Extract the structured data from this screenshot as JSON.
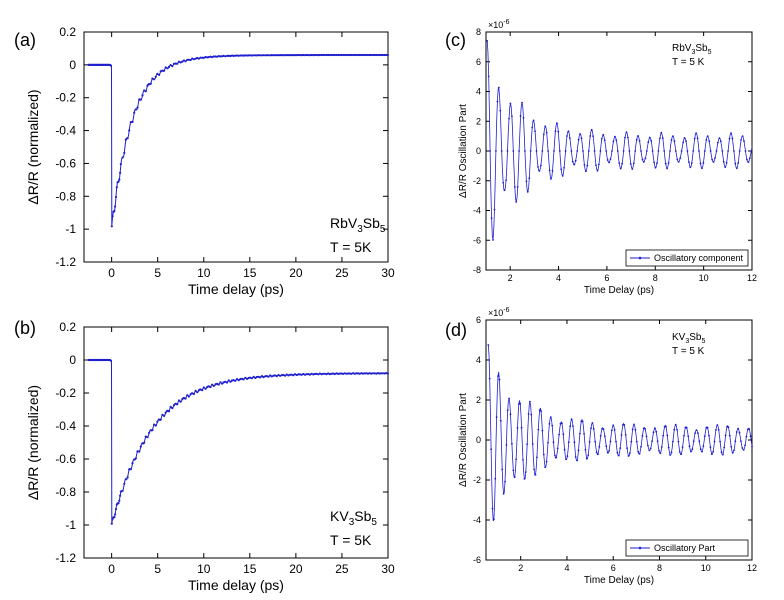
{
  "chart_data": [
    {
      "panel": "(a)",
      "type": "line",
      "title": "",
      "xlabel": "Time delay (ps)",
      "ylabel": "ΔR/R (normalized)",
      "xlim": [
        -3,
        30
      ],
      "ylim": [
        -1.2,
        0.2
      ],
      "xticks": [
        0,
        5,
        10,
        15,
        20,
        25,
        30
      ],
      "yticks": [
        0.2,
        0,
        -0.2,
        -0.4,
        -0.6,
        -0.8,
        -1,
        -1.2
      ],
      "annotation": {
        "compound": "RbV",
        "sub1": "3",
        "mid": "Sb",
        "sub2": "5",
        "temp": "T = 5K"
      },
      "series": [
        {
          "name": "RbV3Sb5",
          "color": "#1f1fcf",
          "model": {
            "t0": 0,
            "rise": 0.15,
            "depth": -1.0,
            "tau": 2.2,
            "plateau": 0.06,
            "relax": 4.0,
            "osc_amp": 0.03,
            "osc_period": 0.48,
            "osc_tau": 4.0
          }
        }
      ]
    },
    {
      "panel": "(b)",
      "type": "line",
      "title": "",
      "xlabel": "Time delay (ps)",
      "ylabel": "ΔR/R (normalized)",
      "xlim": [
        -3,
        30
      ],
      "ylim": [
        -1.2,
        0.2
      ],
      "xticks": [
        0,
        5,
        10,
        15,
        20,
        25,
        30
      ],
      "yticks": [
        0.2,
        0,
        -0.2,
        -0.4,
        -0.6,
        -0.8,
        -1,
        -1.2
      ],
      "annotation": {
        "compound": "KV",
        "sub1": "3",
        "mid": "Sb",
        "sub2": "5",
        "temp": "T = 5K"
      },
      "series": [
        {
          "name": "KV3Sb5",
          "color": "#1f1fcf",
          "model": {
            "t0": 0,
            "rise": 0.15,
            "depth": -1.0,
            "tau": 4.5,
            "plateau": -0.08,
            "relax": 6.0,
            "osc_amp": 0.015,
            "osc_period": 0.45,
            "osc_tau": 12.0
          }
        }
      ]
    },
    {
      "panel": "(c)",
      "type": "line",
      "title": "",
      "xlabel": "Time Delay (ps)",
      "ylabel": "ΔR/R Oscillation Part",
      "exponent": "×10",
      "exponent_power": "-6",
      "xlim": [
        1,
        12
      ],
      "ylim": [
        -8,
        8
      ],
      "xticks": [
        2,
        4,
        6,
        8,
        10,
        12
      ],
      "yticks": [
        8,
        6,
        4,
        2,
        0,
        -2,
        -4,
        -6,
        -8
      ],
      "legend": "Oscillatory component",
      "legend_position": "bottom-right",
      "annotation": {
        "compound": "RbV",
        "sub1": "3",
        "mid": "Sb",
        "sub2": "5",
        "temp": "T = 5 K"
      },
      "series": [
        {
          "name": "Oscillatory component",
          "color": "#1f1fcf",
          "model": {
            "x_start": 1.05,
            "amp": 6.2,
            "decay": 1.3,
            "floor": 1.2,
            "period": 0.48,
            "beat_period": 1.45,
            "beat_depth": 0.45
          }
        }
      ]
    },
    {
      "panel": "(d)",
      "type": "line",
      "title": "",
      "xlabel": "Time Delay (ps)",
      "ylabel": "ΔR/R Oscillation Part",
      "exponent": "×10",
      "exponent_power": "-6",
      "xlim": [
        0.5,
        12
      ],
      "ylim": [
        -6,
        6
      ],
      "xticks": [
        2,
        4,
        6,
        8,
        10,
        12
      ],
      "yticks": [
        6,
        4,
        2,
        0,
        -2,
        -4,
        -6
      ],
      "legend": "Oscillatory Part",
      "legend_position": "bottom-right",
      "annotation": {
        "compound": "KV",
        "sub1": "3",
        "mid": "Sb",
        "sub2": "5",
        "temp": "T = 5 K"
      },
      "series": [
        {
          "name": "Oscillatory Part",
          "color": "#1f1fcf",
          "model": {
            "x_start": 0.6,
            "amp": 4.0,
            "decay": 1.5,
            "floor": 0.75,
            "period": 0.45,
            "beat_period": 2.0,
            "beat_depth": 0.35
          }
        }
      ]
    }
  ]
}
